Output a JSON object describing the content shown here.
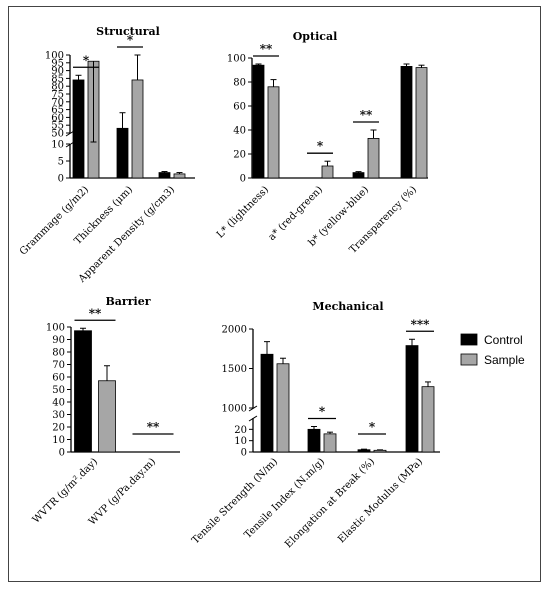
{
  "colors": {
    "control": "#000000",
    "sample": "#a6a6a6",
    "axis": "#000000"
  },
  "legend": {
    "items": [
      {
        "label": "Control",
        "color": "#000000"
      },
      {
        "label": "Sample",
        "color": "#a6a6a6"
      }
    ]
  },
  "chart_data": [
    {
      "type": "bar",
      "title": "Structural",
      "categories": [
        "Grammage (g/m2)",
        "Thickness (μm)",
        "Apparent Density (g/cm3)"
      ],
      "series": [
        {
          "name": "Control",
          "values": [
            84,
            53,
            1.6
          ],
          "errors": [
            3,
            10,
            0.3
          ]
        },
        {
          "name": "Sample",
          "values": [
            96,
            84,
            1.2
          ],
          "errors": [
            5,
            16,
            0.4
          ]
        }
      ],
      "y_axis": {
        "broken": true,
        "lower": [
          0,
          10
        ],
        "upper": [
          50,
          100
        ],
        "lower_ticks": [
          "0",
          "5",
          "10"
        ],
        "upper_ticks": [
          "50",
          "55",
          "60",
          "65",
          "70",
          "75",
          "80",
          "85",
          "90",
          "95",
          "100"
        ]
      },
      "significance": [
        {
          "category": 0,
          "label": "*"
        },
        {
          "category": 1,
          "label": "*"
        }
      ]
    },
    {
      "type": "bar",
      "title": "Optical",
      "categories": [
        "L* (lightness)",
        "a* (red-green)",
        "b* (yellow-blue)",
        "Transparency (%)"
      ],
      "series": [
        {
          "name": "Control",
          "values": [
            94,
            0,
            4.5,
            93
          ],
          "errors": [
            1,
            0,
            0.8,
            2
          ]
        },
        {
          "name": "Sample",
          "values": [
            76,
            10,
            33,
            92
          ],
          "errors": [
            6,
            4,
            7,
            2
          ]
        }
      ],
      "y_axis": {
        "broken": false,
        "range": [
          0,
          100
        ],
        "ticks": [
          "0",
          "20",
          "40",
          "60",
          "80",
          "100"
        ]
      },
      "significance": [
        {
          "category": 0,
          "label": "**"
        },
        {
          "category": 1,
          "label": "*"
        },
        {
          "category": 2,
          "label": "**"
        }
      ]
    },
    {
      "type": "bar",
      "title": "Barrier",
      "categories": [
        "WVTR (g/m².day)",
        "WVP (g/Pa.day.m)"
      ],
      "series": [
        {
          "name": "Control",
          "values": [
            97,
            0
          ],
          "errors": [
            2,
            0
          ]
        },
        {
          "name": "Sample",
          "values": [
            57,
            0
          ],
          "errors": [
            12,
            0
          ]
        }
      ],
      "y_axis": {
        "broken": false,
        "range": [
          0,
          100
        ],
        "ticks": [
          "0",
          "10",
          "20",
          "30",
          "40",
          "50",
          "60",
          "70",
          "80",
          "90",
          "100"
        ]
      },
      "significance": [
        {
          "category": 0,
          "label": "**"
        },
        {
          "category": 1,
          "label": "**"
        }
      ]
    },
    {
      "type": "bar",
      "title": "Mechanical",
      "categories": [
        "Tensile Strength (N/m)",
        "Tensile Index (N.m/g)",
        "Elongation at Break (%)",
        "Elastic Modulus (MPa)"
      ],
      "series": [
        {
          "name": "Control",
          "values": [
            1680,
            20,
            2,
            1790
          ],
          "errors": [
            160,
            2.5,
            0.5,
            80
          ]
        },
        {
          "name": "Sample",
          "values": [
            1560,
            16,
            1.5,
            1270
          ],
          "errors": [
            70,
            1.5,
            0.4,
            60
          ]
        }
      ],
      "y_axis": {
        "broken": true,
        "lower": [
          0,
          30
        ],
        "upper": [
          1000,
          2000
        ],
        "lower_ticks": [
          "0",
          "10",
          "20"
        ],
        "upper_ticks": [
          "1000",
          "1500",
          "2000"
        ]
      },
      "significance": [
        {
          "category": 1,
          "label": "*"
        },
        {
          "category": 2,
          "label": "*"
        },
        {
          "category": 3,
          "label": "***"
        }
      ]
    }
  ]
}
